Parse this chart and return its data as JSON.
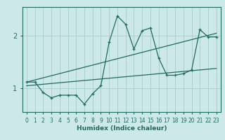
{
  "xlabel": "Humidex (Indice chaleur)",
  "xlim": [
    -0.5,
    23.5
  ],
  "ylim": [
    0.55,
    2.55
  ],
  "yticks": [
    1,
    2
  ],
  "xticks": [
    0,
    1,
    2,
    3,
    4,
    5,
    6,
    7,
    8,
    9,
    10,
    11,
    12,
    13,
    14,
    15,
    16,
    17,
    18,
    19,
    20,
    21,
    22,
    23
  ],
  "bg_color": "#cce8e8",
  "grid_color": "#aacccc",
  "line_color": "#1e6b60",
  "line1_x": [
    0,
    1,
    2,
    3,
    4,
    5,
    6,
    7,
    8,
    9,
    10,
    11,
    12,
    13,
    14,
    15,
    16,
    17,
    18,
    19,
    20,
    21,
    22,
    23
  ],
  "line1_y": [
    1.12,
    1.12,
    0.92,
    0.82,
    0.87,
    0.87,
    0.87,
    0.7,
    0.9,
    1.05,
    1.88,
    2.38,
    2.22,
    1.75,
    2.1,
    2.15,
    1.58,
    1.25,
    1.25,
    1.28,
    1.35,
    2.12,
    1.98,
    1.98
  ],
  "line2_x": [
    0,
    23
  ],
  "line2_y": [
    1.12,
    2.05
  ],
  "line3_x": [
    0,
    23
  ],
  "line3_y": [
    1.05,
    1.38
  ]
}
